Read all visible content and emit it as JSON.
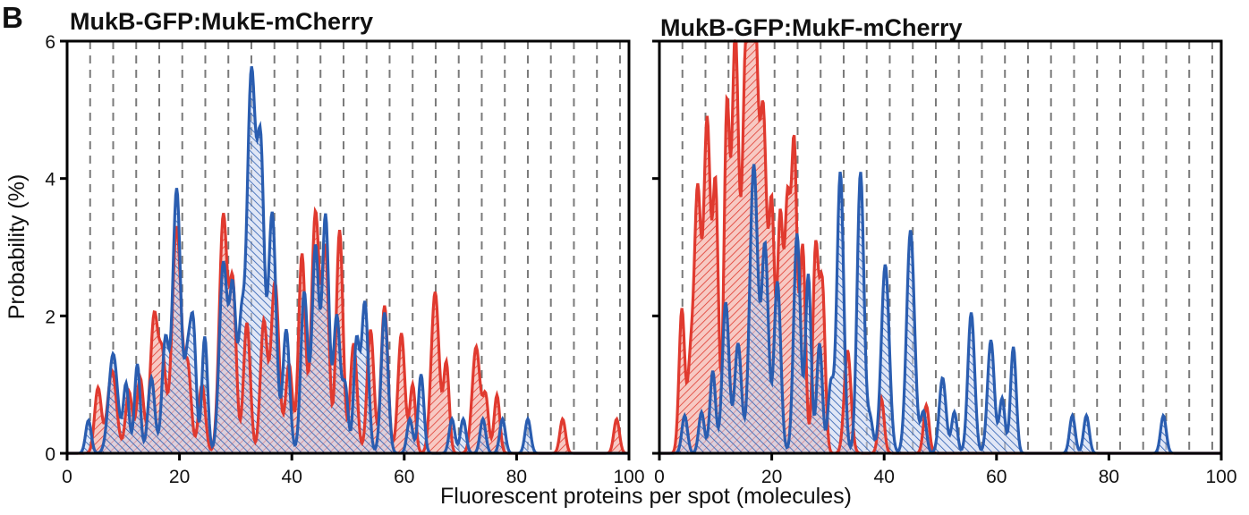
{
  "figure": {
    "panel_letter": "B",
    "xlabel": "Fluorescent proteins per spot (molecules)",
    "ylabel": "Probability (%)",
    "colors": {
      "red": "#e03a2f",
      "blue": "#2a5db0",
      "dash": "#7a7a7a"
    }
  },
  "chart_data": [
    {
      "type": "area",
      "title": "MukB-GFP:MukE-mCherry",
      "xlim": [
        0,
        100
      ],
      "ylim": [
        0,
        6
      ],
      "x_ticks": [
        0,
        20,
        40,
        60,
        80,
        100
      ],
      "y_ticks": [
        0,
        2,
        4,
        6
      ],
      "dashed_grid_x": [
        4.1,
        8.2,
        12.3,
        16.4,
        20.5,
        24.6,
        28.7,
        32.8,
        36.9,
        41,
        45.1,
        49.2,
        53.3,
        57.4,
        61.5,
        65.6,
        69.7,
        73.8,
        77.9,
        82,
        86.1,
        90.2,
        94.3,
        98.4
      ],
      "series": [
        {
          "color": "red",
          "peaks": [
            [
              5.5,
              0.95,
              0.6
            ],
            [
              8,
              1.2,
              0.8
            ],
            [
              11,
              0.9,
              0.6
            ],
            [
              13,
              1.1,
              0.6
            ],
            [
              15.5,
              2.0,
              0.7
            ],
            [
              17,
              1.3,
              0.6
            ],
            [
              19.5,
              3.3,
              0.8
            ],
            [
              21.5,
              1.2,
              0.6
            ],
            [
              24,
              1.0,
              0.6
            ],
            [
              27.8,
              3.45,
              0.7
            ],
            [
              29.5,
              2.4,
              0.6
            ],
            [
              32,
              1.9,
              0.6
            ],
            [
              35,
              1.9,
              0.6
            ],
            [
              37,
              2.5,
              0.7
            ],
            [
              39.5,
              1.3,
              0.6
            ],
            [
              41.8,
              2.9,
              0.6
            ],
            [
              44.2,
              3.5,
              0.7
            ],
            [
              46,
              2.9,
              0.6
            ],
            [
              48.5,
              3.25,
              0.6
            ],
            [
              51,
              1.6,
              0.6
            ],
            [
              54,
              1.8,
              0.6
            ],
            [
              56.5,
              2.15,
              0.6
            ],
            [
              59.5,
              1.75,
              0.6
            ],
            [
              61.5,
              1.0,
              0.5
            ],
            [
              65.5,
              2.35,
              0.7
            ],
            [
              67.5,
              1.3,
              0.5
            ],
            [
              72.8,
              1.55,
              0.7
            ],
            [
              74.5,
              0.8,
              0.5
            ],
            [
              76.5,
              0.85,
              0.5
            ],
            [
              88.2,
              0.5,
              0.5
            ],
            [
              97.8,
              0.5,
              0.5
            ]
          ]
        },
        {
          "color": "blue",
          "peaks": [
            [
              3.8,
              0.48,
              0.5
            ],
            [
              8.2,
              1.45,
              0.8
            ],
            [
              10.5,
              1.0,
              0.5
            ],
            [
              12.5,
              1.3,
              0.5
            ],
            [
              15,
              1.1,
              0.6
            ],
            [
              17.5,
              1.65,
              0.6
            ],
            [
              19.5,
              3.85,
              0.7
            ],
            [
              21.5,
              1.4,
              0.6
            ],
            [
              22.5,
              1.6,
              0.5
            ],
            [
              24.5,
              1.7,
              0.5
            ],
            [
              27.8,
              2.75,
              0.7
            ],
            [
              29.5,
              2.35,
              0.6
            ],
            [
              31,
              1.6,
              0.5
            ],
            [
              32.8,
              5.55,
              0.8
            ],
            [
              34.5,
              4.0,
              0.6
            ],
            [
              36.5,
              3.5,
              0.7
            ],
            [
              39,
              1.8,
              0.6
            ],
            [
              42.2,
              2.35,
              0.6
            ],
            [
              44.2,
              3.0,
              0.6
            ],
            [
              46,
              3.45,
              0.6
            ],
            [
              48,
              2.0,
              0.6
            ],
            [
              49.5,
              0.95,
              0.5
            ],
            [
              51.5,
              1.6,
              0.5
            ],
            [
              53,
              2.2,
              0.6
            ],
            [
              56.5,
              2.05,
              0.6
            ],
            [
              61,
              0.5,
              0.5
            ],
            [
              63,
              1.15,
              0.5
            ],
            [
              68.5,
              0.5,
              0.5
            ],
            [
              70.5,
              0.5,
              0.5
            ],
            [
              74,
              0.5,
              0.5
            ],
            [
              77.5,
              0.5,
              0.5
            ],
            [
              82,
              0.5,
              0.5
            ]
          ]
        }
      ]
    },
    {
      "type": "area",
      "title": "MukB-GFP:MukF-mCherry",
      "xlim": [
        0,
        100
      ],
      "ylim": [
        0,
        6
      ],
      "x_ticks": [
        0,
        20,
        40,
        60,
        80,
        100
      ],
      "y_ticks": [
        0,
        2,
        4,
        6
      ],
      "dashed_grid_x": [
        4.1,
        8.2,
        12.3,
        16.4,
        20.5,
        24.6,
        28.7,
        32.8,
        36.9,
        41,
        45.1,
        49.2,
        53.3,
        57.4,
        61.5,
        65.6,
        69.7,
        73.8,
        77.9,
        82,
        86.1,
        90.2,
        94.3,
        98.4
      ],
      "series": [
        {
          "color": "red",
          "peaks": [
            [
              4,
              2.1,
              0.5
            ],
            [
              5.5,
              1.2,
              0.5
            ],
            [
              6.8,
              3.8,
              0.6
            ],
            [
              8.5,
              4.8,
              0.6
            ],
            [
              10,
              3.8,
              0.5
            ],
            [
              12,
              4.9,
              0.5
            ],
            [
              13.5,
              6.0,
              0.6
            ],
            [
              15.5,
              6.2,
              0.7
            ],
            [
              17,
              5.9,
              0.6
            ],
            [
              18.5,
              4.8,
              0.6
            ],
            [
              20,
              3.5,
              0.5
            ],
            [
              21.5,
              3.4,
              0.5
            ],
            [
              22.8,
              3.5,
              0.5
            ],
            [
              24,
              4.4,
              0.5
            ],
            [
              25.5,
              3.0,
              0.5
            ],
            [
              27.8,
              2.95,
              0.5
            ],
            [
              29,
              2.4,
              0.5
            ],
            [
              33.5,
              1.5,
              0.6
            ],
            [
              39.5,
              0.8,
              0.5
            ],
            [
              47.5,
              0.7,
              0.5
            ]
          ]
        },
        {
          "color": "blue",
          "peaks": [
            [
              4.5,
              0.55,
              0.5
            ],
            [
              7.5,
              0.6,
              0.5
            ],
            [
              9.5,
              1.2,
              0.5
            ],
            [
              11.8,
              2.2,
              0.6
            ],
            [
              14,
              1.6,
              0.6
            ],
            [
              16.8,
              4.2,
              0.7
            ],
            [
              18.8,
              3.0,
              0.6
            ],
            [
              21,
              2.5,
              0.6
            ],
            [
              24.5,
              3.2,
              0.6
            ],
            [
              26.5,
              2.6,
              0.5
            ],
            [
              28.5,
              1.6,
              0.5
            ],
            [
              30.5,
              1.0,
              0.5
            ],
            [
              32.2,
              4.1,
              0.6
            ],
            [
              35.8,
              4.1,
              0.6
            ],
            [
              37.5,
              0.5,
              0.5
            ],
            [
              40.2,
              2.75,
              0.7
            ],
            [
              44.7,
              3.25,
              0.7
            ],
            [
              47,
              0.6,
              0.5
            ],
            [
              50.4,
              1.1,
              0.6
            ],
            [
              52.5,
              0.6,
              0.5
            ],
            [
              55.5,
              2.05,
              0.6
            ],
            [
              59,
              1.65,
              0.6
            ],
            [
              61,
              0.8,
              0.5
            ],
            [
              63,
              1.55,
              0.5
            ],
            [
              73.5,
              0.55,
              0.5
            ],
            [
              76,
              0.55,
              0.5
            ],
            [
              89.7,
              0.55,
              0.5
            ]
          ]
        }
      ]
    }
  ]
}
